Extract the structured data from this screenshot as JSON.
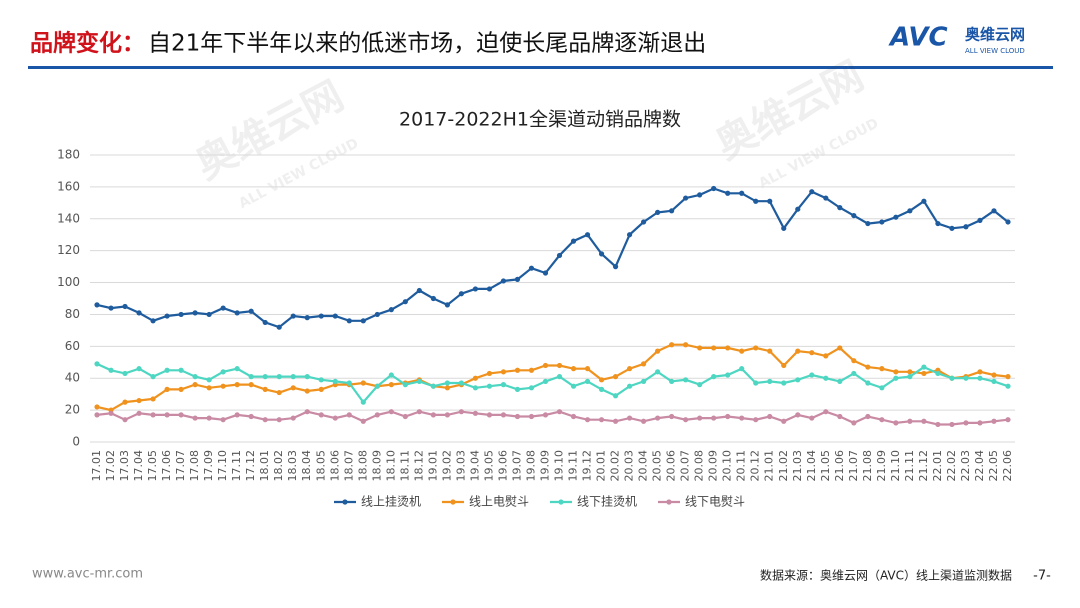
{
  "header": {
    "title_prefix": "品牌变化：",
    "title_rest": "自21年下半年以来的低迷市场，迫使长尾品牌逐渐退出"
  },
  "logo": {
    "mark": "AVC",
    "name": "奥维云网",
    "tagline": "ALL VIEW CLOUD"
  },
  "watermark": {
    "name": "奥维云网",
    "tagline": "ALL VIEW CLOUD"
  },
  "chart_data": {
    "type": "line",
    "title": "2017-2022H1全渠道动销品牌数",
    "categories": [
      "17.01",
      "17.02",
      "17.03",
      "17.04",
      "17.05",
      "17.06",
      "17.07",
      "17.08",
      "17.09",
      "17.10",
      "17.11",
      "17.12",
      "18.01",
      "18.02",
      "18.03",
      "18.04",
      "18.05",
      "18.06",
      "18.07",
      "18.08",
      "18.09",
      "18.10",
      "18.11",
      "18.12",
      "19.01",
      "19.02",
      "19.03",
      "19.04",
      "19.05",
      "19.06",
      "19.07",
      "19.08",
      "19.09",
      "19.10",
      "19.11",
      "19.12",
      "20.01",
      "20.02",
      "20.03",
      "20.04",
      "20.05",
      "20.06",
      "20.07",
      "20.08",
      "20.09",
      "20.10",
      "20.11",
      "20.12",
      "21.01",
      "21.02",
      "21.03",
      "21.04",
      "21.05",
      "21.06",
      "21.07",
      "21.08",
      "21.09",
      "21.10",
      "21.11",
      "21.12",
      "22.01",
      "22.02",
      "22.03",
      "22.04",
      "22.05",
      "22.06"
    ],
    "series": [
      {
        "name": "线上挂烫机",
        "color": "#1f5c9e",
        "values": [
          86,
          84,
          85,
          81,
          76,
          79,
          80,
          81,
          80,
          84,
          81,
          82,
          75,
          72,
          79,
          78,
          79,
          79,
          76,
          76,
          80,
          83,
          88,
          95,
          90,
          86,
          93,
          96,
          96,
          101,
          102,
          109,
          106,
          117,
          126,
          130,
          118,
          110,
          130,
          138,
          144,
          145,
          153,
          155,
          159,
          156,
          156,
          151,
          151,
          134,
          146,
          157,
          153,
          147,
          142,
          137,
          138,
          141,
          145,
          151,
          137,
          134,
          135,
          139,
          145,
          138
        ]
      },
      {
        "name": "线上电熨斗",
        "color": "#f0921e",
        "values": [
          22,
          20,
          25,
          26,
          27,
          33,
          33,
          36,
          34,
          35,
          36,
          36,
          33,
          31,
          34,
          32,
          33,
          36,
          36,
          37,
          35,
          36,
          37,
          39,
          35,
          34,
          36,
          40,
          43,
          44,
          45,
          45,
          48,
          48,
          46,
          46,
          39,
          41,
          46,
          49,
          57,
          61,
          61,
          59,
          59,
          59,
          57,
          59,
          57,
          48,
          57,
          56,
          54,
          59,
          51,
          47,
          46,
          44,
          44,
          43,
          45,
          40,
          41,
          44,
          42,
          41
        ]
      },
      {
        "name": "线下挂烫机",
        "color": "#4dd6c1",
        "values": [
          49,
          45,
          43,
          46,
          41,
          45,
          45,
          41,
          39,
          44,
          46,
          41,
          41,
          41,
          41,
          41,
          39,
          38,
          37,
          25,
          35,
          42,
          36,
          38,
          35,
          37,
          37,
          34,
          35,
          36,
          33,
          34,
          38,
          41,
          35,
          38,
          33,
          29,
          35,
          38,
          44,
          38,
          39,
          36,
          41,
          42,
          46,
          37,
          38,
          37,
          39,
          42,
          40,
          38,
          43,
          37,
          34,
          40,
          41,
          47,
          43,
          40,
          40,
          40,
          38,
          35
        ]
      },
      {
        "name": "线下电熨斗",
        "color": "#c98aa3",
        "values": [
          17,
          18,
          14,
          18,
          17,
          17,
          17,
          15,
          15,
          14,
          17,
          16,
          14,
          14,
          15,
          19,
          17,
          15,
          17,
          13,
          17,
          19,
          16,
          19,
          17,
          17,
          19,
          18,
          17,
          17,
          16,
          16,
          17,
          19,
          16,
          14,
          14,
          13,
          15,
          13,
          15,
          16,
          14,
          15,
          15,
          16,
          15,
          14,
          16,
          13,
          17,
          15,
          19,
          16,
          12,
          16,
          14,
          12,
          13,
          13,
          11,
          11,
          12,
          12,
          13,
          14
        ]
      }
    ],
    "ylim": [
      0,
      180
    ],
    "yticks": [
      0,
      20,
      40,
      60,
      80,
      100,
      120,
      140,
      160,
      180
    ],
    "grid": true,
    "legend": "bottom"
  },
  "footer": {
    "url": "www.avc-mr.com",
    "source": "数据来源：奥维云网（AVC）线上渠道监测数据",
    "page": "-7-"
  }
}
